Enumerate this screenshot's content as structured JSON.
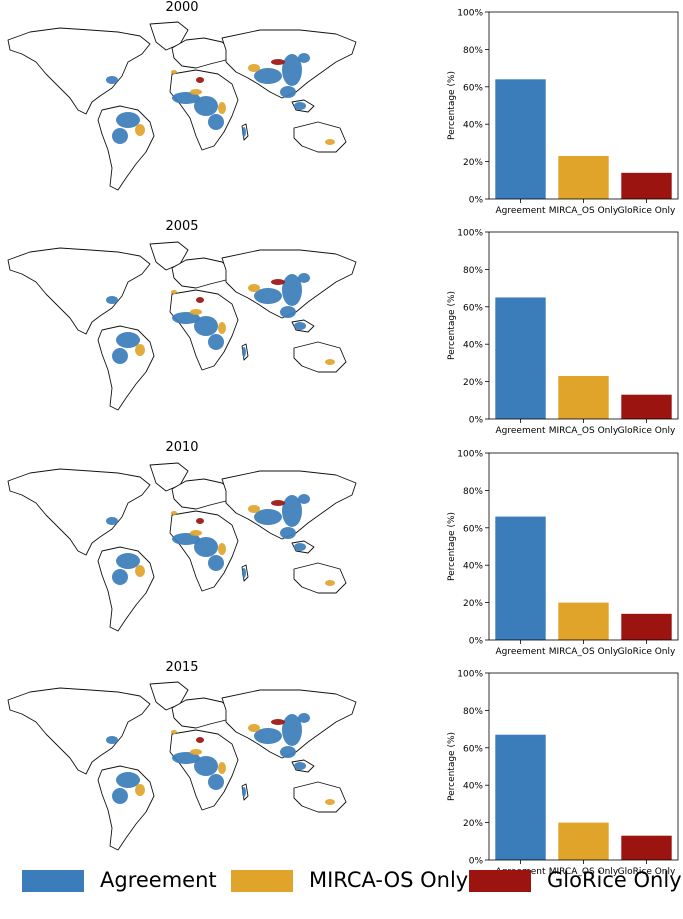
{
  "colors": {
    "agreement": "#3b7dba",
    "mirca": "#e0a42a",
    "glorice": "#9b1410",
    "land_outline": "#111111"
  },
  "legend": {
    "items": [
      {
        "label": "Agreement",
        "color": "#3b7dba"
      },
      {
        "label": "MIRCA-OS Only",
        "color": "#e0a42a"
      },
      {
        "label": "GloRice Only",
        "color": "#9b1410"
      }
    ]
  },
  "chart_data": [
    {
      "type": "bar",
      "title": "2000",
      "ylabel": "Percentage (%)",
      "categories": [
        "Agreement",
        "MIRCA_OS Only",
        "GloRice Only"
      ],
      "values": [
        64,
        23,
        14
      ],
      "ylim": [
        0,
        100
      ],
      "yticks": [
        "0%",
        "20%",
        "40%",
        "60%",
        "80%",
        "100%"
      ]
    },
    {
      "type": "bar",
      "title": "2005",
      "ylabel": "Percentage (%)",
      "categories": [
        "Agreement",
        "MIRCA_OS Only",
        "GloRice Only"
      ],
      "values": [
        65,
        23,
        13
      ],
      "ylim": [
        0,
        100
      ],
      "yticks": [
        "0%",
        "20%",
        "40%",
        "60%",
        "80%",
        "100%"
      ]
    },
    {
      "type": "bar",
      "title": "2010",
      "ylabel": "Percentage (%)",
      "categories": [
        "Agreement",
        "MIRCA_OS Only",
        "GloRice Only"
      ],
      "values": [
        66,
        20,
        14
      ],
      "ylim": [
        0,
        100
      ],
      "yticks": [
        "0%",
        "20%",
        "40%",
        "60%",
        "80%",
        "100%"
      ]
    },
    {
      "type": "bar",
      "title": "2015",
      "ylabel": "Percentage (%)",
      "categories": [
        "Agreement",
        "MIRCA_OS Only",
        "GloRice Only"
      ],
      "values": [
        67,
        20,
        13
      ],
      "ylim": [
        0,
        100
      ],
      "yticks": [
        "0%",
        "20%",
        "40%",
        "60%",
        "80%",
        "100%"
      ]
    }
  ]
}
